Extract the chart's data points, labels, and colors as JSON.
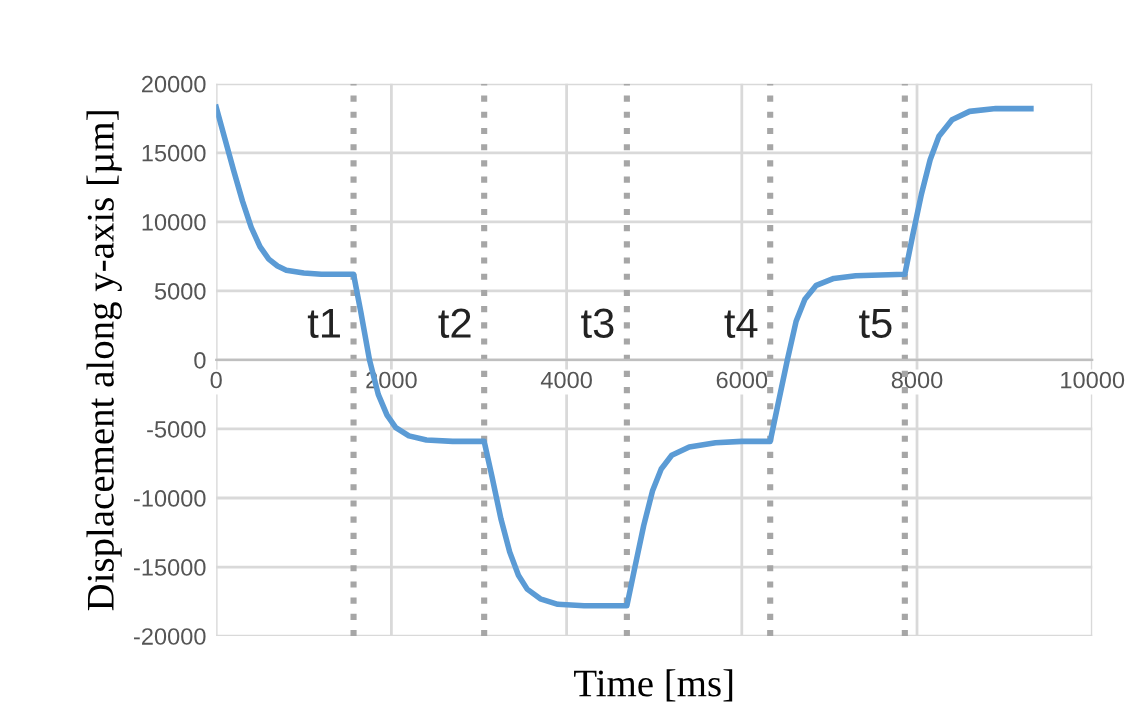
{
  "chart_data": {
    "type": "line",
    "xlabel": "Time [ms]",
    "ylabel": "Displacement along y-axis [µm]",
    "series": [
      {
        "color": "#5b9bd5",
        "x": [
          0,
          100,
          200,
          300,
          400,
          500,
          600,
          700,
          800,
          1000,
          1200,
          1568,
          1650,
          1750,
          1850,
          1950,
          2050,
          2200,
          2400,
          2700,
          3059,
          3150,
          3250,
          3350,
          3450,
          3550,
          3700,
          3900,
          4200,
          4688,
          4780,
          4880,
          4980,
          5080,
          5200,
          5400,
          5700,
          6000,
          6324,
          6420,
          6520,
          6620,
          6720,
          6850,
          7050,
          7300,
          7861,
          7950,
          8050,
          8150,
          8250,
          8400,
          8600,
          8900,
          9300
        ],
        "values": [
          18300,
          16000,
          13700,
          11500,
          9600,
          8200,
          7300,
          6800,
          6500,
          6300,
          6200,
          6200,
          3500,
          0,
          -2500,
          -4000,
          -4900,
          -5500,
          -5800,
          -5900,
          -5900,
          -8500,
          -11500,
          -13900,
          -15600,
          -16600,
          -17300,
          -17700,
          -17800,
          -17800,
          -15000,
          -12000,
          -9500,
          -7900,
          -6900,
          -6300,
          -6000,
          -5900,
          -5900,
          -3000,
          0,
          2800,
          4400,
          5400,
          5900,
          6100,
          6200,
          9000,
          12000,
          14500,
          16200,
          17400,
          18000,
          18200,
          18200
        ]
      }
    ],
    "xlim": [
      0,
      10000
    ],
    "xticks": [
      0,
      2000,
      4000,
      6000,
      8000,
      10000
    ],
    "ylim": [
      -20000,
      20000
    ],
    "yticks": [
      -20000,
      -15000,
      -10000,
      -5000,
      0,
      5000,
      10000,
      15000,
      20000
    ],
    "grid": true,
    "marker": "none",
    "line_style": "solid",
    "ref_lines": [
      {
        "axis": "x",
        "value": 1568,
        "label": "t1",
        "color": "#a6a6a6",
        "line_style": "dotted"
      },
      {
        "axis": "x",
        "value": 3059,
        "label": "t2",
        "color": "#a6a6a6",
        "line_style": "dotted"
      },
      {
        "axis": "x",
        "value": 4688,
        "label": "t3",
        "color": "#a6a6a6",
        "line_style": "dotted"
      },
      {
        "axis": "x",
        "value": 6324,
        "label": "t4",
        "color": "#a6a6a6",
        "line_style": "dotted"
      },
      {
        "axis": "x",
        "value": 7861,
        "label": "t5",
        "color": "#a6a6a6",
        "line_style": "dotted"
      }
    ]
  }
}
